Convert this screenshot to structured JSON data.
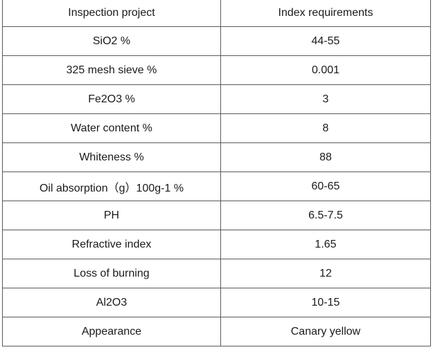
{
  "table": {
    "headers": [
      "Inspection project",
      "Index requirements"
    ],
    "rows": [
      [
        "SiO2 %",
        "44-55"
      ],
      [
        "325 mesh sieve %",
        "0.001"
      ],
      [
        "Fe2O3 %",
        "3"
      ],
      [
        "Water content %",
        "8"
      ],
      [
        "Whiteness %",
        "88"
      ],
      [
        "Oil absorption（g）100g-1 %",
        "60-65"
      ],
      [
        "PH",
        "6.5-7.5"
      ],
      [
        "Refractive index",
        "1.65"
      ],
      [
        "Loss of burning",
        "12"
      ],
      [
        "Al2O3",
        "10-15"
      ],
      [
        "Appearance",
        "Canary yellow"
      ]
    ]
  }
}
